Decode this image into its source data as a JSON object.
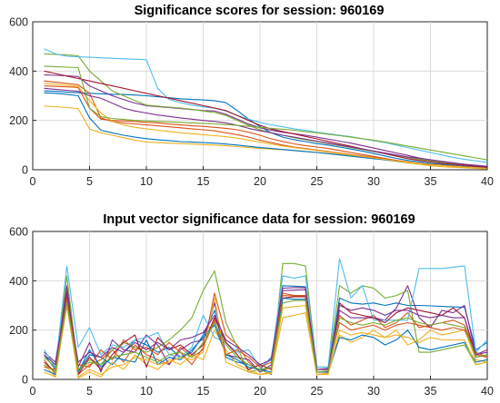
{
  "colors": [
    "#0072BD",
    "#D95319",
    "#EDB120",
    "#7E2F8E",
    "#77AC30",
    "#4DBEEE",
    "#A2142F"
  ],
  "chart_data": [
    {
      "type": "line",
      "title": "Significance scores for session: 960169",
      "xlabel": "",
      "ylabel": "",
      "xlim": [
        0,
        40
      ],
      "ylim": [
        0,
        600
      ],
      "xticks": [
        0,
        5,
        10,
        15,
        20,
        25,
        30,
        35,
        40
      ],
      "yticks": [
        0,
        200,
        400,
        600
      ],
      "grid": true,
      "x": [
        1,
        2,
        3,
        4,
        5,
        6,
        7,
        8,
        9,
        10,
        11,
        12,
        13,
        14,
        15,
        16,
        17,
        18,
        19,
        20,
        21,
        22,
        23,
        24,
        25,
        26,
        27,
        28,
        29,
        30,
        31,
        32,
        33,
        34,
        35,
        36,
        37,
        38,
        39,
        40
      ],
      "series": [
        {
          "values": [
            320,
            318,
            315,
            312,
            310,
            308,
            306,
            305,
            303,
            300,
            296,
            292,
            288,
            285,
            283,
            280,
            272,
            240,
            205,
            175,
            150,
            132,
            122,
            114,
            106,
            100,
            92,
            84,
            76,
            66,
            56,
            46,
            38,
            32,
            26,
            22,
            18,
            14,
            10,
            6
          ]
        },
        {
          "values": [
            340,
            338,
            336,
            334,
            250,
            205,
            200,
            198,
            196,
            192,
            190,
            185,
            182,
            178,
            176,
            172,
            168,
            162,
            152,
            140,
            125,
            115,
            105,
            98,
            92,
            86,
            78,
            70,
            62,
            54,
            46,
            38,
            30,
            24,
            20,
            18,
            16,
            13,
            11,
            8
          ]
        },
        {
          "values": [
            258,
            256,
            252,
            248,
            165,
            150,
            140,
            130,
            120,
            112,
            110,
            108,
            106,
            104,
            102,
            100,
            97,
            94,
            90,
            86,
            84,
            81,
            78,
            74,
            70,
            66,
            62,
            58,
            52,
            46,
            40,
            34,
            28,
            22,
            16,
            12,
            10,
            8,
            6,
            4
          ]
        },
        {
          "values": [
            385,
            383,
            381,
            378,
            340,
            320,
            300,
            285,
            270,
            260,
            256,
            252,
            248,
            244,
            240,
            238,
            225,
            205,
            185,
            170,
            160,
            152,
            146,
            140,
            132,
            124,
            116,
            108,
            98,
            88,
            78,
            68,
            58,
            48,
            40,
            34,
            28,
            22,
            18,
            14
          ]
        },
        {
          "values": [
            470,
            468,
            466,
            462,
            400,
            360,
            320,
            300,
            280,
            262,
            258,
            254,
            250,
            245,
            238,
            232,
            220,
            200,
            180,
            162,
            150,
            140,
            130,
            122,
            114,
            106,
            98,
            90,
            82,
            74,
            66,
            58,
            50,
            42,
            36,
            30,
            24,
            18,
            14,
            10
          ]
        },
        {
          "values": [
            490,
            470,
            460,
            458,
            456,
            454,
            452,
            450,
            448,
            446,
            330,
            285,
            272,
            262,
            255,
            250,
            238,
            220,
            205,
            192,
            182,
            174,
            166,
            160,
            152,
            146,
            140,
            134,
            126,
            118,
            110,
            100,
            90,
            80,
            70,
            60,
            50,
            42,
            36,
            30
          ]
        },
        {
          "values": [
            400,
            390,
            380,
            370,
            360,
            350,
            340,
            330,
            320,
            310,
            300,
            290,
            280,
            270,
            260,
            250,
            240,
            220,
            200,
            180,
            165,
            155,
            145,
            135,
            125,
            115,
            105,
            95,
            85,
            75,
            65,
            55,
            45,
            38,
            32,
            26,
            22,
            18,
            14,
            10
          ]
        },
        {
          "values": [
            312,
            310,
            306,
            300,
            210,
            160,
            150,
            140,
            132,
            126,
            122,
            118,
            114,
            112,
            110,
            108,
            104,
            100,
            95,
            90,
            86,
            82,
            78,
            74,
            70,
            65,
            60,
            55,
            50,
            45,
            40,
            35,
            30,
            26,
            22,
            18,
            15,
            12,
            9,
            6
          ]
        },
        {
          "values": [
            360,
            355,
            350,
            345,
            310,
            210,
            196,
            190,
            186,
            182,
            178,
            174,
            170,
            166,
            162,
            158,
            150,
            142,
            132,
            120,
            110,
            100,
            92,
            86,
            80,
            74,
            68,
            62,
            56,
            50,
            44,
            38,
            32,
            26,
            22,
            18,
            14,
            11,
            8,
            6
          ]
        },
        {
          "values": [
            350,
            346,
            342,
            338,
            280,
            230,
            196,
            182,
            172,
            166,
            160,
            155,
            150,
            146,
            142,
            138,
            134,
            128,
            120,
            112,
            104,
            96,
            90,
            84,
            78,
            72,
            66,
            60,
            54,
            48,
            42,
            36,
            30,
            25,
            21,
            17,
            14,
            11,
            8,
            5
          ]
        },
        {
          "values": [
            330,
            326,
            322,
            318,
            300,
            290,
            270,
            250,
            238,
            230,
            222,
            216,
            210,
            205,
            200,
            196,
            190,
            180,
            168,
            158,
            150,
            140,
            132,
            124,
            116,
            108,
            100,
            92,
            84,
            76,
            68,
            60,
            52,
            46,
            40,
            34,
            28,
            22,
            17,
            12
          ]
        },
        {
          "values": [
            420,
            418,
            416,
            414,
            250,
            215,
            208,
            204,
            200,
            198,
            196,
            194,
            192,
            190,
            188,
            186,
            183,
            180,
            176,
            172,
            168,
            164,
            160,
            155,
            150,
            144,
            138,
            132,
            126,
            120,
            112,
            104,
            96,
            88,
            80,
            72,
            64,
            56,
            48,
            40
          ]
        }
      ]
    },
    {
      "type": "line",
      "title": "Input vector significance data for session: 960169",
      "xlabel": "",
      "ylabel": "",
      "xlim": [
        0,
        40
      ],
      "ylim": [
        0,
        600
      ],
      "xticks": [
        0,
        5,
        10,
        15,
        20,
        25,
        30,
        35,
        40
      ],
      "yticks": [
        0,
        200,
        400,
        600
      ],
      "grid": true,
      "x": [
        1,
        2,
        3,
        4,
        5,
        6,
        7,
        8,
        9,
        10,
        11,
        12,
        13,
        14,
        15,
        16,
        17,
        18,
        19,
        20,
        21,
        22,
        23,
        24,
        25,
        26,
        27,
        28,
        29,
        30,
        31,
        32,
        33,
        34,
        35,
        36,
        37,
        38,
        39,
        40
      ],
      "series": [
        {
          "values": [
            100,
            40,
            370,
            30,
            100,
            90,
            60,
            110,
            160,
            140,
            110,
            130,
            90,
            110,
            180,
            280,
            90,
            70,
            60,
            40,
            90,
            380,
            378,
            376,
            30,
            30,
            330,
            310,
            305,
            310,
            300,
            310,
            300,
            300,
            298,
            296,
            294,
            292,
            120,
            150
          ]
        },
        {
          "values": [
            80,
            20,
            360,
            20,
            60,
            80,
            120,
            70,
            140,
            100,
            80,
            60,
            130,
            90,
            120,
            350,
            180,
            140,
            70,
            30,
            50,
            340,
            338,
            336,
            20,
            25,
            260,
            220,
            240,
            260,
            210,
            230,
            270,
            210,
            220,
            230,
            240,
            220,
            100,
            90
          ]
        },
        {
          "values": [
            60,
            10,
            320,
            5,
            30,
            10,
            70,
            40,
            100,
            60,
            40,
            80,
            60,
            100,
            80,
            200,
            120,
            60,
            40,
            20,
            30,
            250,
            260,
            270,
            20,
            25,
            180,
            150,
            170,
            200,
            170,
            200,
            140,
            160,
            200,
            180,
            190,
            200,
            80,
            70
          ]
        },
        {
          "values": [
            110,
            70,
            380,
            50,
            150,
            30,
            160,
            120,
            110,
            180,
            140,
            60,
            120,
            150,
            160,
            310,
            100,
            90,
            80,
            30,
            60,
            360,
            362,
            364,
            40,
            45,
            280,
            250,
            250,
            250,
            240,
            290,
            380,
            250,
            210,
            280,
            270,
            300,
            100,
            110
          ]
        },
        {
          "values": [
            90,
            50,
            420,
            40,
            80,
            60,
            120,
            150,
            130,
            110,
            130,
            160,
            200,
            250,
            360,
            440,
            230,
            130,
            30,
            40,
            20,
            470,
            470,
            460,
            50,
            50,
            380,
            350,
            380,
            370,
            330,
            340,
            360,
            110,
            110,
            120,
            130,
            140,
            60,
            70
          ]
        },
        {
          "values": [
            120,
            50,
            460,
            130,
            210,
            100,
            140,
            130,
            160,
            170,
            190,
            100,
            90,
            130,
            260,
            170,
            150,
            110,
            120,
            50,
            80,
            420,
            410,
            420,
            50,
            50,
            490,
            330,
            380,
            240,
            240,
            240,
            240,
            450,
            450,
            450,
            455,
            460,
            110,
            160
          ]
        },
        {
          "values": [
            70,
            30,
            340,
            20,
            90,
            40,
            100,
            150,
            180,
            50,
            170,
            120,
            140,
            100,
            140,
            250,
            150,
            100,
            40,
            60,
            40,
            330,
            335,
            335,
            30,
            30,
            310,
            270,
            260,
            250,
            230,
            270,
            290,
            280,
            270,
            260,
            290,
            250,
            90,
            100
          ]
        },
        {
          "values": [
            40,
            20,
            300,
            30,
            120,
            50,
            90,
            80,
            70,
            160,
            60,
            90,
            80,
            120,
            170,
            220,
            100,
            80,
            50,
            40,
            30,
            330,
            325,
            325,
            30,
            30,
            170,
            160,
            180,
            170,
            140,
            160,
            200,
            130,
            120,
            130,
            140,
            150,
            70,
            80
          ]
        },
        {
          "values": [
            50,
            40,
            330,
            60,
            50,
            120,
            80,
            160,
            120,
            130,
            100,
            150,
            110,
            60,
            130,
            240,
            100,
            120,
            90,
            50,
            70,
            350,
            340,
            340,
            40,
            40,
            230,
            200,
            210,
            220,
            200,
            220,
            230,
            220,
            210,
            200,
            210,
            200,
            110,
            90
          ]
        },
        {
          "values": [
            30,
            10,
            300,
            10,
            40,
            20,
            50,
            60,
            90,
            80,
            60,
            70,
            90,
            80,
            110,
            330,
            70,
            50,
            30,
            20,
            25,
            290,
            295,
            300,
            20,
            20,
            200,
            180,
            190,
            180,
            170,
            180,
            170,
            150,
            170,
            160,
            160,
            160,
            60,
            70
          ]
        },
        {
          "values": [
            100,
            60,
            350,
            70,
            110,
            90,
            130,
            110,
            150,
            120,
            150,
            120,
            160,
            170,
            190,
            260,
            160,
            130,
            100,
            60,
            80,
            370,
            372,
            372,
            40,
            40,
            300,
            280,
            290,
            280,
            260,
            280,
            280,
            260,
            250,
            260,
            250,
            250,
            100,
            120
          ]
        },
        {
          "values": [
            60,
            30,
            310,
            40,
            70,
            60,
            90,
            100,
            110,
            90,
            70,
            100,
            110,
            90,
            150,
            230,
            140,
            90,
            60,
            40,
            50,
            310,
            320,
            320,
            30,
            35,
            250,
            230,
            220,
            230,
            220,
            240,
            250,
            230,
            220,
            230,
            220,
            210,
            90,
            100
          ]
        }
      ]
    }
  ]
}
